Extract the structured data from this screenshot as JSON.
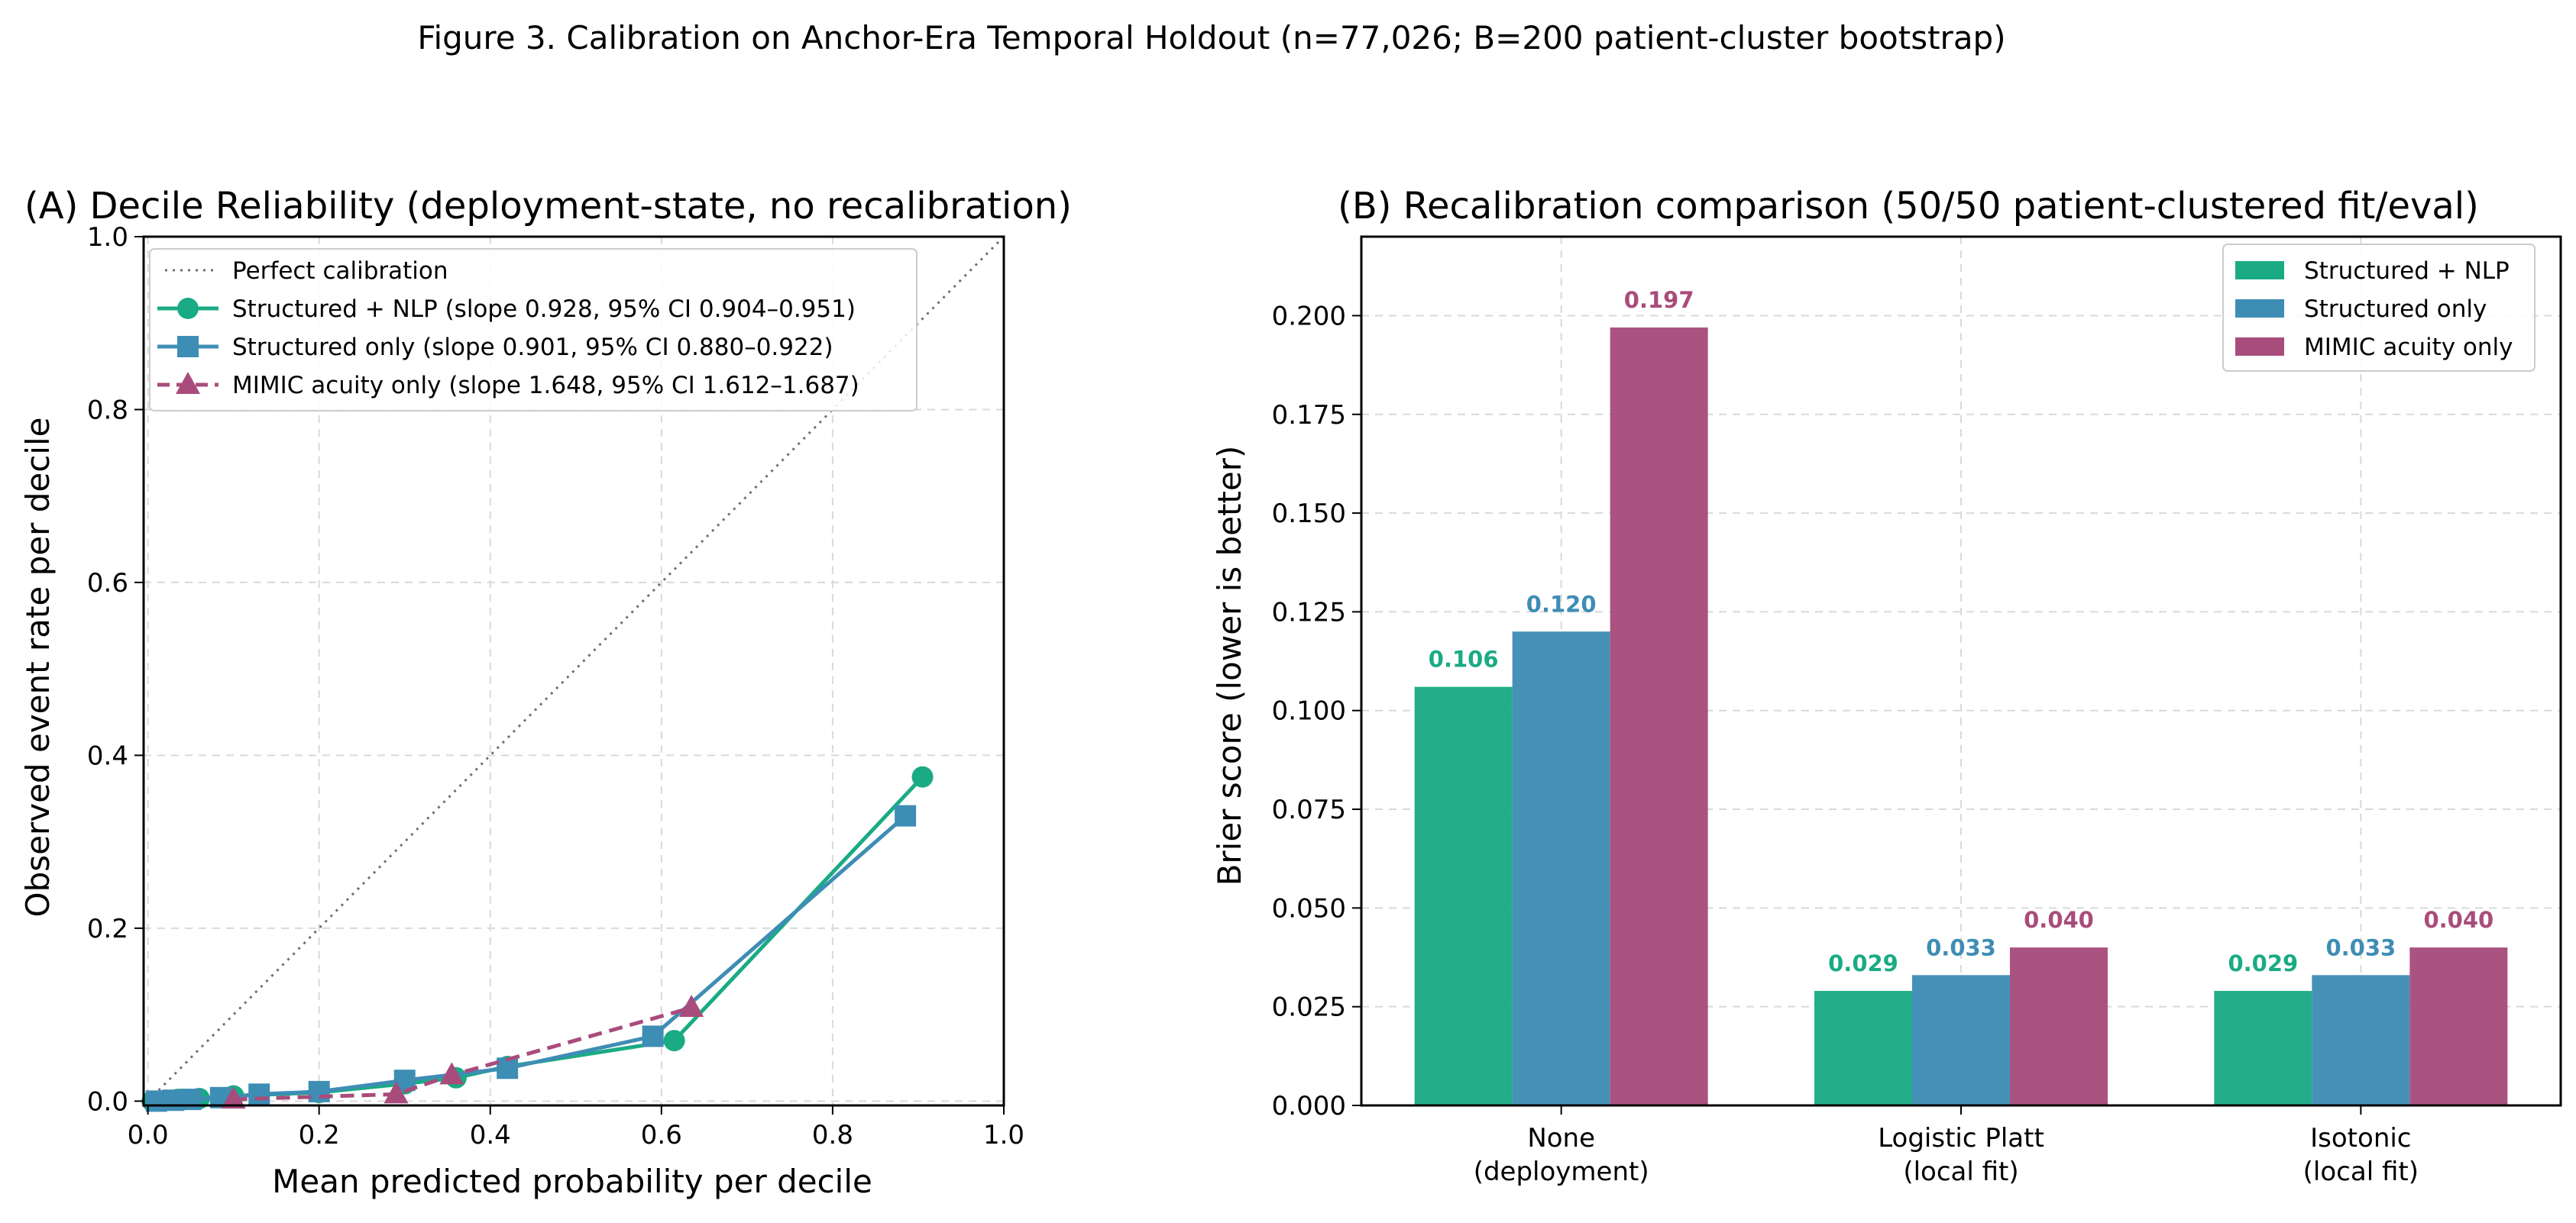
{
  "figure_title": "Figure 3. Calibration on Anchor-Era Temporal Holdout (n=77,026; B=200 patient-cluster bootstrap)",
  "colors": {
    "structured_nlp": "#1aab84",
    "structured_only": "#3e8db5",
    "mimic": "#a84c7b",
    "perfect": "#6f6f6f",
    "grid": "#d9d9d9"
  },
  "chart_data": [
    {
      "type": "line",
      "title": "(A) Decile Reliability (deployment-state, no recalibration)",
      "xlabel": "Mean predicted probability per decile",
      "ylabel": "Observed event rate per decile",
      "xlim": [
        -0.005,
        1.0
      ],
      "ylim": [
        -0.005,
        1.0
      ],
      "x_ticks": [
        "0.0",
        "0.2",
        "0.4",
        "0.6",
        "0.8",
        "1.0"
      ],
      "y_ticks": [
        "0.0",
        "0.2",
        "0.4",
        "0.6",
        "0.8",
        "1.0"
      ],
      "grid": true,
      "legend_position": "top-left",
      "reference_line": {
        "name": "Perfect calibration",
        "x": [
          0,
          1
        ],
        "y": [
          0,
          1
        ]
      },
      "series": [
        {
          "name": "Structured + NLP (slope 0.928, 95% CI 0.904–0.951)",
          "color_key": "structured_nlp",
          "marker": "circle",
          "line": "solid",
          "x": [
            0.005,
            0.02,
            0.035,
            0.06,
            0.1,
            0.2,
            0.3,
            0.36,
            0.42,
            0.615,
            0.905
          ],
          "y": [
            0.0,
            0.001,
            0.002,
            0.003,
            0.006,
            0.01,
            0.02,
            0.027,
            0.04,
            0.07,
            0.375
          ]
        },
        {
          "name": "Structured only (slope 0.901, 95% CI 0.880–0.922)",
          "color_key": "structured_only",
          "marker": "square",
          "line": "solid",
          "x": [
            0.01,
            0.03,
            0.05,
            0.085,
            0.13,
            0.2,
            0.3,
            0.42,
            0.59,
            0.885
          ],
          "y": [
            0.0,
            0.001,
            0.002,
            0.004,
            0.008,
            0.011,
            0.024,
            0.038,
            0.075,
            0.33
          ]
        },
        {
          "name": "MIMIC acuity only (slope 1.648, 95% CI 1.612–1.687)",
          "color_key": "mimic",
          "marker": "triangle",
          "line": "dashed",
          "x": [
            0.1,
            0.29,
            0.355,
            0.635
          ],
          "y": [
            0.002,
            0.008,
            0.03,
            0.108
          ]
        }
      ]
    },
    {
      "type": "bar",
      "title": "(B) Recalibration comparison (50/50 patient-clustered fit/eval)",
      "ylabel": "Brier score (lower is better)",
      "categories": [
        [
          "None",
          "(deployment)"
        ],
        [
          "Logistic Platt",
          "(local fit)"
        ],
        [
          "Isotonic",
          "(local fit)"
        ]
      ],
      "ylim": [
        0,
        0.22
      ],
      "y_ticks": [
        "0.000",
        "0.025",
        "0.050",
        "0.075",
        "0.100",
        "0.125",
        "0.150",
        "0.175",
        "0.200"
      ],
      "grid": true,
      "legend_position": "top-right",
      "series": [
        {
          "name": "Structured + NLP",
          "color_key": "structured_nlp",
          "values": [
            0.106,
            0.029,
            0.029
          ],
          "labels": [
            "0.106",
            "0.029",
            "0.029"
          ]
        },
        {
          "name": "Structured only",
          "color_key": "structured_only",
          "values": [
            0.12,
            0.033,
            0.033
          ],
          "labels": [
            "0.120",
            "0.033",
            "0.033"
          ]
        },
        {
          "name": "MIMIC acuity only",
          "color_key": "mimic",
          "values": [
            0.197,
            0.04,
            0.04
          ],
          "labels": [
            "0.197",
            "0.040",
            "0.040"
          ]
        }
      ]
    }
  ]
}
